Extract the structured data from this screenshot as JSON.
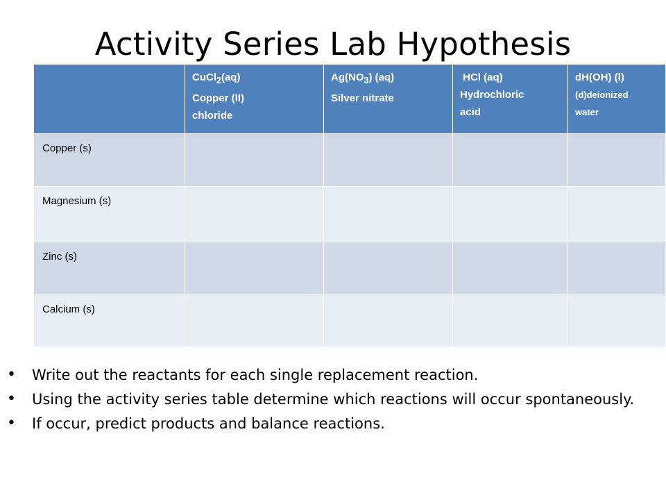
{
  "title": "Activity Series Lab Hypothesis",
  "table": {
    "headers": [
      {
        "formula_main": "CuCl",
        "formula_sub": "2",
        "formula_rest": "(aq)",
        "line2": "Copper (II)",
        "line3": "chloride"
      },
      {
        "formula_main": "Ag(NO",
        "formula_sub": "3",
        "formula_rest": ") (aq)",
        "line2": "Silver nitrate",
        "line3": ""
      },
      {
        "formula_main": " HCl (aq)",
        "formula_sub": "",
        "formula_rest": "",
        "line2": "Hydrochloric",
        "line3": "acid"
      },
      {
        "formula_main": "dH(OH) (l)",
        "formula_sub": "",
        "formula_rest": "",
        "line2": "(d)deionized",
        "line3": "water"
      }
    ],
    "rows": [
      "Copper (s)",
      "Magnesium (s)",
      "Zinc (s)",
      "Calcium (s)"
    ]
  },
  "bullets": [
    "Write out the reactants for each single replacement reaction.",
    "Using the activity series table determine which reactions will occur spontaneously.",
    "If occur, predict products and balance reactions."
  ]
}
